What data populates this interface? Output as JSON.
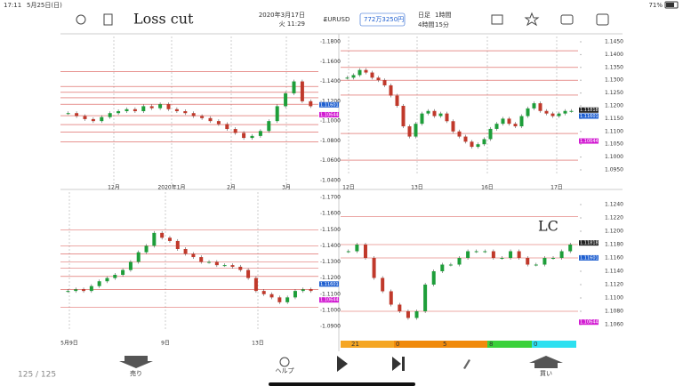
{
  "status_bar": {
    "time": "17:11",
    "date": "5月25日(日)",
    "battery": "71%"
  },
  "left_toolbar": {
    "note": "Loss cut",
    "date": "2020年3月17日",
    "time": "火 11:29"
  },
  "right_toolbar": {
    "symbol": "EURUSD",
    "balance": "772万3250円",
    "timeframes": [
      "日足",
      "1時間",
      "4時間",
      "15分"
    ]
  },
  "panels": [
    {
      "ylim": [
        1.04,
        1.18
      ],
      "yticks": [
        {
          "value": 1.18,
          "label": "1.1800"
        },
        {
          "value": 1.16,
          "label": "1.1600"
        },
        {
          "value": 1.14,
          "label": "1.1400"
        },
        {
          "value": 1.12,
          "label": "1.1200"
        },
        {
          "value": 1.1,
          "label": "1.1000"
        },
        {
          "value": 1.08,
          "label": "1.0800"
        },
        {
          "value": 1.06,
          "label": "1.0600"
        },
        {
          "value": 1.04,
          "label": "1.0400"
        }
      ],
      "xlabels": [
        "12月",
        "2020年1月",
        "2月",
        "3月"
      ],
      "closes": [
        1.108,
        1.105,
        1.102,
        1.1,
        1.104,
        1.108,
        1.11,
        1.112,
        1.11,
        1.115,
        1.113,
        1.117,
        1.112,
        1.11,
        1.108,
        1.105,
        1.103,
        1.1,
        1.097,
        1.092,
        1.088,
        1.083,
        1.085,
        1.09,
        1.1,
        1.115,
        1.128,
        1.14,
        1.12,
        1.115
      ],
      "levels": [
        1.15,
        1.135,
        1.129,
        1.1235,
        1.117,
        1.1055,
        1.0965,
        1.089,
        1.079
      ],
      "tags": [
        1.11601,
        1.10644
      ],
      "tag_colors": [
        "#1f5fd0",
        "#d21bd2"
      ]
    },
    {
      "ylim": [
        1.095,
        1.145
      ],
      "yticks": [
        {
          "value": 1.145,
          "label": "1.1450"
        },
        {
          "value": 1.14,
          "label": "1.1400"
        },
        {
          "value": 1.135,
          "label": "1.1350"
        },
        {
          "value": 1.13,
          "label": "1.1300"
        },
        {
          "value": 1.125,
          "label": "1.1250"
        },
        {
          "value": 1.12,
          "label": "1.1200"
        },
        {
          "value": 1.115,
          "label": "1.1150"
        },
        {
          "value": 1.11,
          "label": "1.1100"
        },
        {
          "value": 1.105,
          "label": "1.1050"
        },
        {
          "value": 1.1,
          "label": "1.1000"
        },
        {
          "value": 1.095,
          "label": "1.0950"
        }
      ],
      "xlabels": [
        "12日",
        "13日",
        "16日",
        "17日"
      ],
      "closes": [
        1.131,
        1.132,
        1.134,
        1.133,
        1.131,
        1.13,
        1.128,
        1.124,
        1.12,
        1.112,
        1.108,
        1.113,
        1.117,
        1.118,
        1.116,
        1.117,
        1.114,
        1.11,
        1.108,
        1.106,
        1.104,
        1.105,
        1.107,
        1.111,
        1.113,
        1.115,
        1.113,
        1.112,
        1.116,
        1.119,
        1.121,
        1.118,
        1.117,
        1.116,
        1.117,
        1.118,
        1.118
      ],
      "levels": [
        1.1415,
        1.135,
        1.13,
        1.1242,
        1.1092,
        1.0988
      ],
      "tags": [
        1.11818,
        1.11601,
        1.10644
      ],
      "tag_colors": [
        "#222222",
        "#1f5fd0",
        "#d21bd2"
      ]
    },
    {
      "ylim": [
        1.09,
        1.17
      ],
      "yticks": [
        {
          "value": 1.17,
          "label": "1.1700"
        },
        {
          "value": 1.16,
          "label": "1.1600"
        },
        {
          "value": 1.15,
          "label": "1.1500"
        },
        {
          "value": 1.14,
          "label": "1.1400"
        },
        {
          "value": 1.13,
          "label": "1.1300"
        },
        {
          "value": 1.12,
          "label": "1.1200"
        },
        {
          "value": 1.11,
          "label": "1.1100"
        },
        {
          "value": 1.1,
          "label": "1.1000"
        },
        {
          "value": 1.09,
          "label": "1.0900"
        }
      ],
      "xlabels": [
        "5月9日",
        "9日",
        "13日"
      ],
      "closes": [
        1.112,
        1.113,
        1.112,
        1.115,
        1.118,
        1.12,
        1.122,
        1.125,
        1.13,
        1.136,
        1.14,
        1.148,
        1.145,
        1.143,
        1.138,
        1.135,
        1.133,
        1.13,
        1.13,
        1.128,
        1.128,
        1.127,
        1.125,
        1.12,
        1.112,
        1.11,
        1.108,
        1.105,
        1.108,
        1.112,
        1.113,
        1.112
      ],
      "levels": [
        1.15,
        1.14,
        1.135,
        1.13,
        1.126,
        1.121,
        1.113,
        1.102
      ],
      "tags": [
        1.11601,
        1.10644
      ],
      "tag_colors": [
        "#1f5fd0",
        "#d21bd2"
      ]
    },
    {
      "ylim": [
        1.106,
        1.124
      ],
      "yticks": [
        {
          "value": 1.124,
          "label": "1.1240"
        },
        {
          "value": 1.122,
          "label": "1.1220"
        },
        {
          "value": 1.12,
          "label": "1.1200"
        },
        {
          "value": 1.118,
          "label": "1.1180"
        },
        {
          "value": 1.116,
          "label": "1.1160"
        },
        {
          "value": 1.114,
          "label": "1.1140"
        },
        {
          "value": 1.112,
          "label": "1.1120"
        },
        {
          "value": 1.11,
          "label": "1.1100"
        },
        {
          "value": 1.108,
          "label": "1.1080"
        },
        {
          "value": 1.106,
          "label": "1.1060"
        }
      ],
      "xlabels": [],
      "closes": [
        1.117,
        1.118,
        1.116,
        1.113,
        1.111,
        1.109,
        1.108,
        1.107,
        1.108,
        1.112,
        1.114,
        1.115,
        1.115,
        1.116,
        1.117,
        1.117,
        1.117,
        1.116,
        1.116,
        1.117,
        1.116,
        1.115,
        1.115,
        1.116,
        1.116,
        1.117,
        1.118
      ],
      "levels": [
        1.1222,
        1.118,
        1.116,
        1.108
      ],
      "tags": [
        1.11818,
        1.11601,
        1.10644
      ],
      "tag_colors": [
        "#222222",
        "#1f5fd0",
        "#d21bd2"
      ]
    }
  ],
  "indicator": {
    "labels": [
      21,
      0,
      5,
      8,
      0
    ]
  },
  "annotation": "LC",
  "bottom_bar": {
    "sell": "売り",
    "help": "ヘルプ",
    "buy": "買い"
  },
  "page_counter": "125 / 125"
}
